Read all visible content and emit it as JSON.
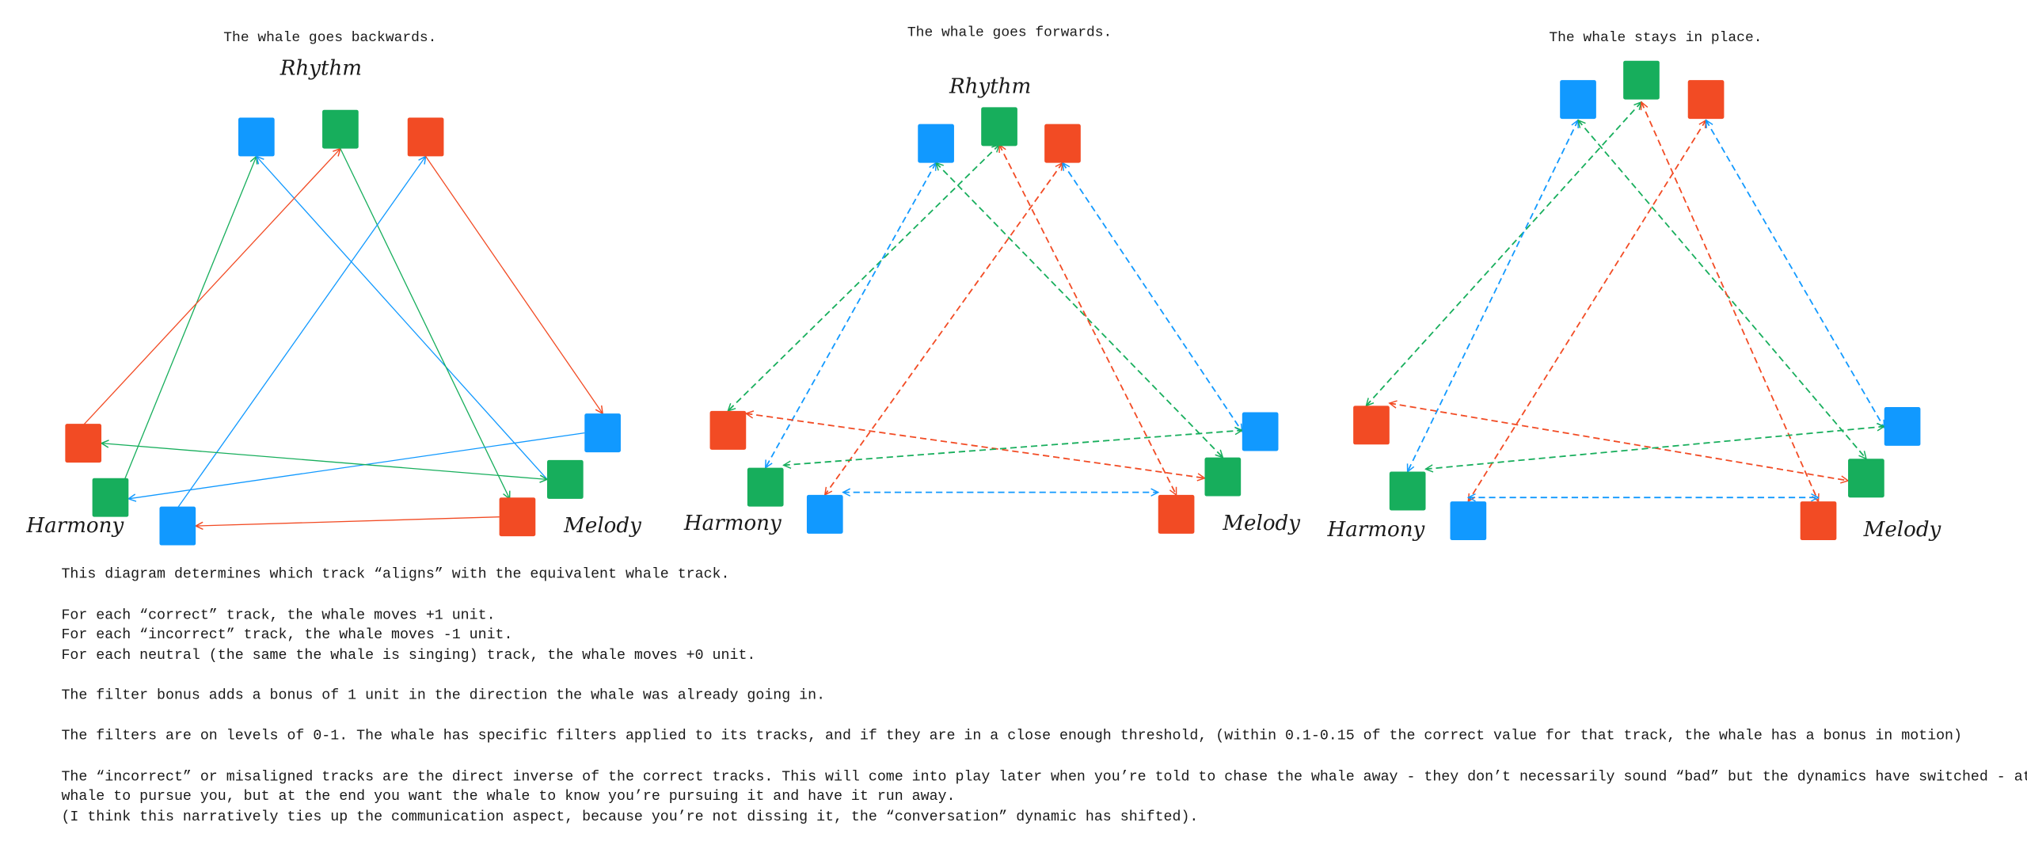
{
  "colors": {
    "blue": "#1199ff",
    "green": "#17ae5c",
    "red": "#f24b24"
  },
  "diagrams": [
    {
      "title": "The whale goes backwards.",
      "labels": {
        "rhythm": "Rhythm",
        "harmony": "Harmony",
        "melody": "Melody"
      },
      "line_style": "solid",
      "edges": [
        {
          "color": "green",
          "from": "harmony-green",
          "to": "rhythm-blue",
          "arrows": "end"
        },
        {
          "color": "blue",
          "from": "melody-green",
          "to": "rhythm-blue",
          "arrows": "end"
        },
        {
          "color": "red",
          "from": "harmony-red",
          "to": "rhythm-green",
          "arrows": "end"
        },
        {
          "color": "green",
          "from": "rhythm-green",
          "to": "melody-red",
          "arrows": "end"
        },
        {
          "color": "blue",
          "from": "harmony-blue",
          "to": "rhythm-red",
          "arrows": "end"
        },
        {
          "color": "red",
          "from": "rhythm-red",
          "to": "melody-blue",
          "arrows": "end"
        },
        {
          "color": "blue",
          "from": "melody-blue",
          "to": "harmony-green",
          "arrows": "end"
        },
        {
          "color": "green",
          "from": "melody-green",
          "to": "harmony-red",
          "arrows": "both"
        },
        {
          "color": "red",
          "from": "melody-red",
          "to": "harmony-blue",
          "arrows": "end"
        }
      ]
    },
    {
      "title": "The whale goes forwards.",
      "labels": {
        "rhythm": "Rhythm",
        "harmony": "Harmony",
        "melody": "Melody"
      },
      "line_style": "dashed",
      "edges": [
        {
          "color": "green",
          "from": "rhythm-green",
          "to": "harmony-red",
          "arrows": "both"
        },
        {
          "color": "blue",
          "from": "rhythm-blue",
          "to": "harmony-green",
          "arrows": "both"
        },
        {
          "color": "red",
          "from": "rhythm-red",
          "to": "harmony-blue",
          "arrows": "both"
        },
        {
          "color": "green",
          "from": "rhythm-blue",
          "to": "melody-green",
          "arrows": "both"
        },
        {
          "color": "red",
          "from": "rhythm-green",
          "to": "melody-red",
          "arrows": "both"
        },
        {
          "color": "blue",
          "from": "rhythm-red",
          "to": "melody-blue",
          "arrows": "both"
        },
        {
          "color": "red",
          "from": "harmony-red",
          "to": "melody-green",
          "arrows": "both"
        },
        {
          "color": "green",
          "from": "harmony-green",
          "to": "melody-blue",
          "arrows": "both"
        },
        {
          "color": "blue",
          "from": "harmony-blue",
          "to": "melody-red",
          "arrows": "both"
        }
      ]
    },
    {
      "title": "The whale stays in place.",
      "labels": {
        "harmony": "Harmony",
        "melody": "Melody"
      },
      "line_style": "dashed",
      "edges": [
        {
          "color": "green",
          "from": "rhythm-green",
          "to": "harmony-red",
          "arrows": "both"
        },
        {
          "color": "blue",
          "from": "rhythm-blue",
          "to": "harmony-green",
          "arrows": "both"
        },
        {
          "color": "red",
          "from": "rhythm-red",
          "to": "harmony-blue",
          "arrows": "both"
        },
        {
          "color": "green",
          "from": "rhythm-blue",
          "to": "melody-green",
          "arrows": "both"
        },
        {
          "color": "red",
          "from": "rhythm-green",
          "to": "melody-red",
          "arrows": "both"
        },
        {
          "color": "blue",
          "from": "rhythm-red",
          "to": "melody-blue",
          "arrows": "both"
        },
        {
          "color": "red",
          "from": "harmony-red",
          "to": "melody-green",
          "arrows": "both"
        },
        {
          "color": "green",
          "from": "harmony-green",
          "to": "melody-blue",
          "arrows": "both"
        },
        {
          "color": "blue",
          "from": "harmony-blue",
          "to": "melody-red",
          "arrows": "both"
        }
      ]
    }
  ],
  "notes": [
    "This diagram determines which track “aligns” with the equivalent whale track.",
    "For each “correct” track, the whale moves +1 unit.",
    "For each “incorrect” track, the whale moves -1 unit.",
    "For each neutral (the same the whale is singing) track, the whale moves +0 unit.",
    "The filter bonus adds a bonus of 1 unit in the direction the whale was already going in.",
    "The filters are on levels of 0-1. The whale has specific filters applied to its tracks, and if they are in a close enough threshold, (within 0.1-0.15 of the correct value for that track, the whale has a bonus in motion)",
    "The “incorrect” or misaligned tracks are the direct inverse of the correct tracks. This will come into play later when you’re told to chase the whale away - they don’t necessarily sound “bad” but the dynamics have switched - at the start you want the",
    "whale to pursue you, but at the end you want the whale to know you’re pursuing it and have it run away.",
    "(I think this narratively ties up the communication aspect, because you’re not dissing it, the “conversation” dynamic has shifted)."
  ]
}
